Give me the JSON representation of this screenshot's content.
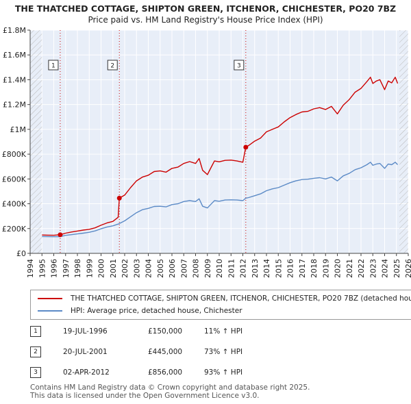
{
  "chart_data": {
    "type": "line",
    "title": "THE THATCHED COTTAGE, SHIPTON GREEN, ITCHENOR, CHICHESTER, PO20 7BZ",
    "subtitle": "Price paid vs. HM Land Registry's House Price Index (HPI)",
    "xlim": [
      1994,
      2026
    ],
    "ylim": [
      0,
      1800000
    ],
    "x_ticks": [
      {
        "value": 1994,
        "label": "1994"
      },
      {
        "value": 1995,
        "label": "1995"
      },
      {
        "value": 1996,
        "label": "1996"
      },
      {
        "value": 1997,
        "label": "1997"
      },
      {
        "value": 1998,
        "label": "1998"
      },
      {
        "value": 1999,
        "label": "1999"
      },
      {
        "value": 2000,
        "label": "2000"
      },
      {
        "value": 2001,
        "label": "2001"
      },
      {
        "value": 2002,
        "label": "2002"
      },
      {
        "value": 2003,
        "label": "2003"
      },
      {
        "value": 2004,
        "label": "2004"
      },
      {
        "value": 2005,
        "label": "2005"
      },
      {
        "value": 2006,
        "label": "2006"
      },
      {
        "value": 2007,
        "label": "2007"
      },
      {
        "value": 2008,
        "label": "2008"
      },
      {
        "value": 2009,
        "label": "2009"
      },
      {
        "value": 2010,
        "label": "2010"
      },
      {
        "value": 2011,
        "label": "2011"
      },
      {
        "value": 2012,
        "label": "2012"
      },
      {
        "value": 2013,
        "label": "2013"
      },
      {
        "value": 2014,
        "label": "2014"
      },
      {
        "value": 2015,
        "label": "2015"
      },
      {
        "value": 2016,
        "label": "2016"
      },
      {
        "value": 2017,
        "label": "2017"
      },
      {
        "value": 2018,
        "label": "2018"
      },
      {
        "value": 2019,
        "label": "2019"
      },
      {
        "value": 2020,
        "label": "2020"
      },
      {
        "value": 2021,
        "label": "2021"
      },
      {
        "value": 2022,
        "label": "2022"
      },
      {
        "value": 2023,
        "label": "2023"
      },
      {
        "value": 2024,
        "label": "2024"
      },
      {
        "value": 2025,
        "label": "2025"
      },
      {
        "value": 2026,
        "label": "2026"
      }
    ],
    "y_ticks": [
      {
        "value": 0,
        "label": "£0"
      },
      {
        "value": 200000,
        "label": "£200K"
      },
      {
        "value": 400000,
        "label": "£400K"
      },
      {
        "value": 600000,
        "label": "£600K"
      },
      {
        "value": 800000,
        "label": "£800K"
      },
      {
        "value": 1000000,
        "label": "£1M"
      },
      {
        "value": 1200000,
        "label": "£1.2M"
      },
      {
        "value": 1400000,
        "label": "£1.4M"
      },
      {
        "value": 1600000,
        "label": "£1.6M"
      },
      {
        "value": 1800000,
        "label": "£1.8M"
      }
    ],
    "hatched_before": 1995,
    "hatched_after": 2025.25,
    "series": [
      {
        "name": "THE THATCHED COTTAGE, SHIPTON GREEN, ITCHENOR, CHICHESTER, PO20 7BZ (detached house)",
        "color": "#cc0000",
        "x": [
          1995.0,
          1995.5,
          1996.0,
          1996.545,
          1997.0,
          1997.5,
          1998.0,
          1998.5,
          1999.0,
          1999.5,
          2000.0,
          2000.5,
          2001.0,
          2001.45,
          2001.55,
          2002.0,
          2002.5,
          2003.0,
          2003.5,
          2004.0,
          2004.5,
          2005.0,
          2005.5,
          2006.0,
          2006.5,
          2007.0,
          2007.5,
          2008.0,
          2008.3,
          2008.6,
          2009.0,
          2009.3,
          2009.6,
          2010.0,
          2010.5,
          2011.0,
          2011.5,
          2012.0,
          2012.25,
          2012.5,
          2013.0,
          2013.5,
          2014.0,
          2014.5,
          2015.0,
          2015.5,
          2016.0,
          2016.5,
          2017.0,
          2017.5,
          2018.0,
          2018.5,
          2019.0,
          2019.5,
          2020.0,
          2020.5,
          2021.0,
          2021.5,
          2022.0,
          2022.5,
          2022.8,
          2023.0,
          2023.3,
          2023.6,
          2024.0,
          2024.3,
          2024.6,
          2024.9,
          2025.1
        ],
        "y": [
          148000,
          147000,
          146000,
          150000,
          163000,
          172000,
          180000,
          188000,
          194000,
          206000,
          227000,
          245000,
          258000,
          291000,
          445000,
          470000,
          530000,
          585000,
          615000,
          630000,
          660000,
          665000,
          655000,
          685000,
          695000,
          725000,
          740000,
          725000,
          765000,
          670000,
          635000,
          690000,
          745000,
          738000,
          750000,
          752000,
          745000,
          735000,
          856000,
          870000,
          905000,
          930000,
          980000,
          1000000,
          1020000,
          1060000,
          1095000,
          1120000,
          1140000,
          1145000,
          1165000,
          1175000,
          1160000,
          1185000,
          1125000,
          1195000,
          1240000,
          1300000,
          1330000,
          1385000,
          1420000,
          1370000,
          1390000,
          1400000,
          1320000,
          1390000,
          1375000,
          1420000,
          1370000
        ]
      },
      {
        "name": "HPI: Average price, detached house, Chichester",
        "color": "#5b8ac6",
        "x": [
          1995.0,
          1995.5,
          1996.0,
          1996.545,
          1997.0,
          1997.5,
          1998.0,
          1998.5,
          1999.0,
          1999.5,
          2000.0,
          2000.5,
          2001.0,
          2001.5,
          2002.0,
          2002.5,
          2003.0,
          2003.5,
          2004.0,
          2004.5,
          2005.0,
          2005.5,
          2006.0,
          2006.5,
          2007.0,
          2007.5,
          2008.0,
          2008.3,
          2008.6,
          2009.0,
          2009.3,
          2009.6,
          2010.0,
          2010.5,
          2011.0,
          2011.5,
          2012.0,
          2012.25,
          2012.5,
          2013.0,
          2013.5,
          2014.0,
          2014.5,
          2015.0,
          2015.5,
          2016.0,
          2016.5,
          2017.0,
          2017.5,
          2018.0,
          2018.5,
          2019.0,
          2019.5,
          2020.0,
          2020.5,
          2021.0,
          2021.5,
          2022.0,
          2022.5,
          2022.8,
          2023.0,
          2023.3,
          2023.6,
          2024.0,
          2024.3,
          2024.6,
          2024.9,
          2025.1
        ],
        "y": [
          136000,
          135000,
          134000,
          135000,
          145000,
          151000,
          157000,
          163000,
          170000,
          181000,
          198000,
          212000,
          222000,
          238000,
          262000,
          295000,
          328000,
          352000,
          363000,
          378000,
          380000,
          375000,
          393000,
          400000,
          418000,
          425000,
          418000,
          440000,
          380000,
          366000,
          396000,
          425000,
          420000,
          430000,
          432000,
          430000,
          425000,
          445000,
          450000,
          465000,
          480000,
          505000,
          520000,
          530000,
          550000,
          570000,
          585000,
          595000,
          598000,
          605000,
          610000,
          600000,
          615000,
          585000,
          625000,
          645000,
          675000,
          690000,
          715000,
          735000,
          710000,
          720000,
          725000,
          685000,
          720000,
          715000,
          735000,
          715000
        ]
      }
    ],
    "sales": [
      {
        "marker": "1",
        "x": 1996.545,
        "y": 150000
      },
      {
        "marker": "2",
        "x": 2001.55,
        "y": 445000
      },
      {
        "marker": "3",
        "x": 2012.25,
        "y": 856000
      }
    ]
  },
  "legend": {
    "property_label": "THE THATCHED COTTAGE, SHIPTON GREEN, ITCHENOR, CHICHESTER, PO20 7BZ (detached house)",
    "hpi_label": "HPI: Average price, detached house, Chichester"
  },
  "sales_table": [
    {
      "num": "1",
      "date": "19-JUL-1996",
      "price": "£150,000",
      "hpi": "11% ↑ HPI"
    },
    {
      "num": "2",
      "date": "20-JUL-2001",
      "price": "£445,000",
      "hpi": "73% ↑ HPI"
    },
    {
      "num": "3",
      "date": "02-APR-2012",
      "price": "£856,000",
      "hpi": "93% ↑ HPI"
    }
  ],
  "footer": {
    "line1": "Contains HM Land Registry data © Crown copyright and database right 2025.",
    "line2": "This data is licensed under the Open Government Licence v3.0."
  },
  "colors": {
    "property": "#cc0000",
    "hpi": "#5b8ac6",
    "plot_bg": "#e8eef8"
  }
}
